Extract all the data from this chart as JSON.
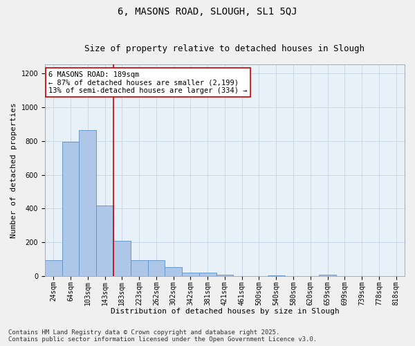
{
  "title1": "6, MASONS ROAD, SLOUGH, SL1 5QJ",
  "title2": "Size of property relative to detached houses in Slough",
  "xlabel": "Distribution of detached houses by size in Slough",
  "ylabel": "Number of detached properties",
  "categories": [
    "24sqm",
    "64sqm",
    "103sqm",
    "143sqm",
    "183sqm",
    "223sqm",
    "262sqm",
    "302sqm",
    "342sqm",
    "381sqm",
    "421sqm",
    "461sqm",
    "500sqm",
    "540sqm",
    "580sqm",
    "620sqm",
    "659sqm",
    "699sqm",
    "739sqm",
    "778sqm",
    "818sqm"
  ],
  "values": [
    95,
    795,
    865,
    420,
    210,
    95,
    95,
    55,
    20,
    20,
    10,
    0,
    0,
    5,
    0,
    0,
    10,
    0,
    0,
    0,
    0
  ],
  "bar_color": "#aec6e8",
  "bar_edge_color": "#5a8fc2",
  "highlight_bar_index": 4,
  "highlight_color": "#cc0000",
  "annotation_text": "6 MASONS ROAD: 189sqm\n← 87% of detached houses are smaller (2,199)\n13% of semi-detached houses are larger (334) →",
  "annotation_box_color": "#ffffff",
  "annotation_box_edge_color": "#cc0000",
  "ylim": [
    0,
    1250
  ],
  "yticks": [
    0,
    200,
    400,
    600,
    800,
    1000,
    1200
  ],
  "grid_color": "#c8d8e8",
  "background_color": "#e8f0f8",
  "footer_line1": "Contains HM Land Registry data © Crown copyright and database right 2025.",
  "footer_line2": "Contains public sector information licensed under the Open Government Licence v3.0.",
  "title_fontsize": 10,
  "subtitle_fontsize": 9,
  "axis_label_fontsize": 8,
  "tick_fontsize": 7,
  "annotation_fontsize": 7.5,
  "footer_fontsize": 6.5
}
